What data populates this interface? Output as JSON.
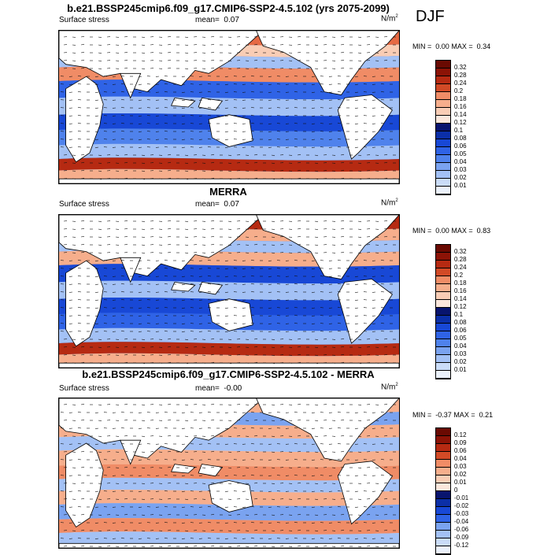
{
  "season": "DJF",
  "colors": {
    "blues": [
      "#08146e",
      "#0b2fa8",
      "#1848d6",
      "#2f63e6",
      "#4f82ec",
      "#7aa3f0",
      "#a3c1f5",
      "#cadcf8",
      "#ebf1fb"
    ],
    "reds": [
      "#fbe7dc",
      "#f9cdb5",
      "#f6ae8c",
      "#f08c66",
      "#e66a44",
      "#d24a26",
      "#b62a12",
      "#8c1306",
      "#6a0a02"
    ],
    "land": "#ffffff",
    "ocean_base": "#3b6fe4"
  },
  "panels": [
    {
      "title": "b.e21.BSSP245cmip6.f09_g17.CMIP6-SSP2-4.5.102 (yrs 2075-2099)",
      "left_label": "Surface stress",
      "mean_label": "mean=",
      "mean_value": "0.07",
      "units_main": "N/m",
      "units_sup": "2",
      "min_label": "MIN =",
      "min_value": "0.00",
      "max_label": "MAX =",
      "max_value": "0.34",
      "cbar_ticks": [
        "0.32",
        "0.28",
        "0.24",
        "0.2",
        "0.18",
        "0.16",
        "0.14",
        "0.12",
        "0.1",
        "0.08",
        "0.06",
        "0.05",
        "0.04",
        "0.03",
        "0.02",
        "0.01"
      ]
    },
    {
      "title": "MERRA",
      "left_label": "Surface stress",
      "mean_label": "mean=",
      "mean_value": "0.07",
      "units_main": "N/m",
      "units_sup": "2",
      "min_label": "MIN =",
      "min_value": "0.00",
      "max_label": "MAX =",
      "max_value": "0.83",
      "cbar_ticks": [
        "0.32",
        "0.28",
        "0.24",
        "0.2",
        "0.18",
        "0.16",
        "0.14",
        "0.12",
        "0.1",
        "0.08",
        "0.06",
        "0.05",
        "0.04",
        "0.03",
        "0.02",
        "0.01"
      ]
    },
    {
      "title": "b.e21.BSSP245cmip6.f09_g17.CMIP6-SSP2-4.5.102 - MERRA",
      "left_label": "Surface stress",
      "mean_label": "mean=",
      "mean_value": "-0.00",
      "units_main": "N/m",
      "units_sup": "2",
      "min_label": "MIN =",
      "min_value": "-0.37",
      "max_label": "MAX =",
      "max_value": "0.21",
      "cbar_ticks": [
        "0.12",
        "0.09",
        "0.06",
        "0.04",
        "0.03",
        "0.02",
        "0.01",
        "0",
        "-0.01",
        "-0.02",
        "-0.03",
        "-0.04",
        "-0.06",
        "-0.09",
        "-0.12"
      ]
    }
  ]
}
